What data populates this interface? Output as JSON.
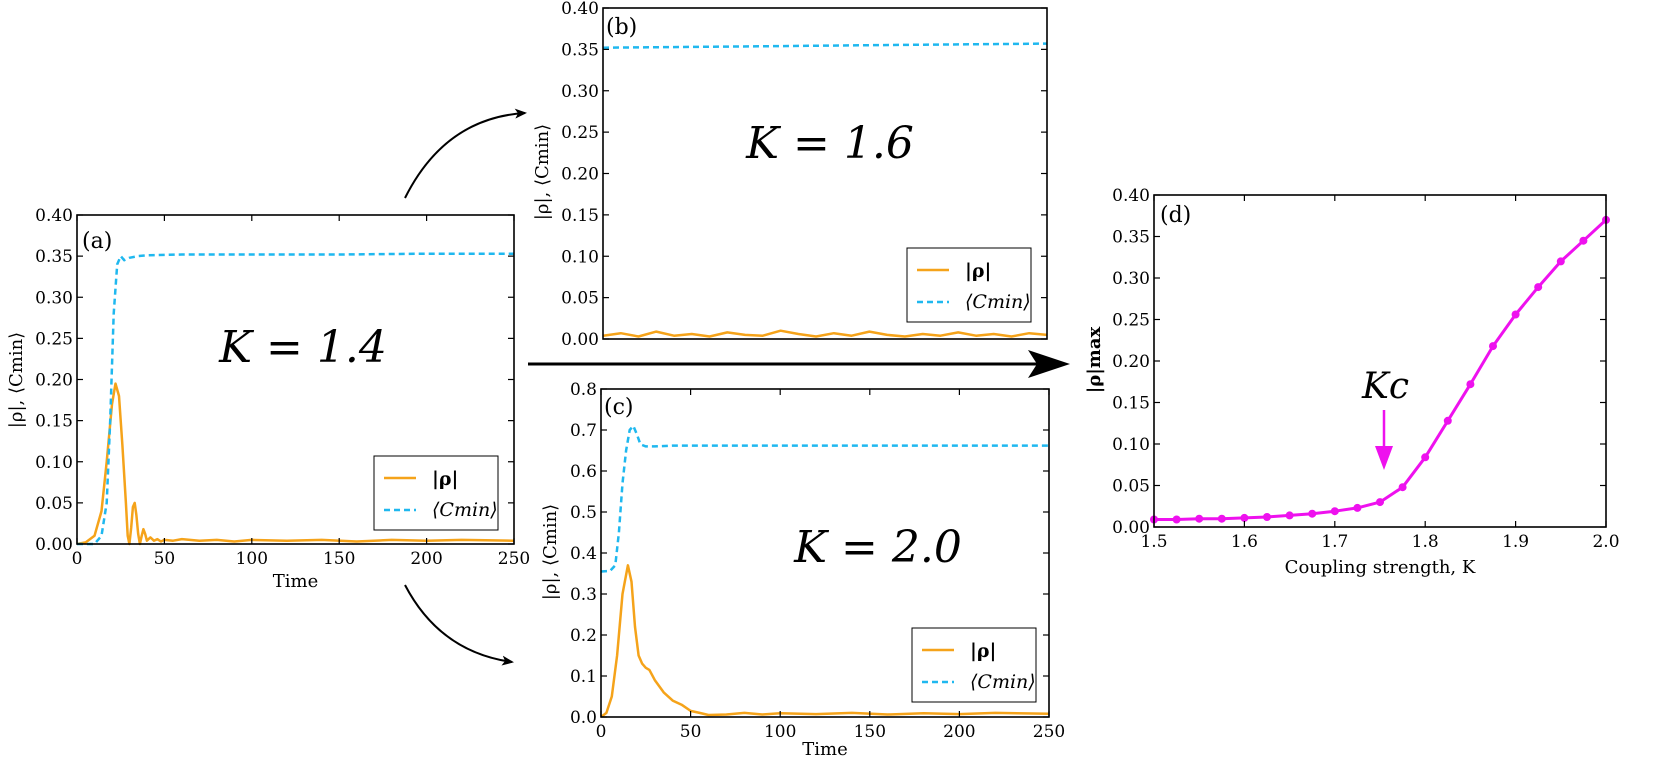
{
  "colors": {
    "rho": "#f5a31a",
    "cmin": "#1fb8ef",
    "sweep": "#ee11ee",
    "axis": "#000000"
  },
  "legend": {
    "rho": "|ρ|",
    "cmin": "⟨Cmin⟩"
  },
  "arrow": {
    "kc_label": "Kc"
  },
  "chart_data": [
    {
      "id": "a",
      "type": "line",
      "panel_label": "(a)",
      "annotation": "K = 1.4",
      "xlabel": "Time",
      "ylabel": "|ρ|, ⟨Cmin⟩",
      "xlim": [
        0,
        250
      ],
      "ylim": [
        0,
        0.4
      ],
      "xticks": [
        0,
        50,
        100,
        150,
        200,
        250
      ],
      "yticks": [
        0.0,
        0.05,
        0.1,
        0.15,
        0.2,
        0.25,
        0.3,
        0.35,
        0.4
      ],
      "ytick_decimals": 2,
      "series": [
        {
          "name": "|ρ|",
          "style": "solid",
          "x": [
            0,
            5,
            10,
            14,
            17,
            20,
            22,
            24,
            26,
            28,
            29,
            30,
            31,
            32,
            33,
            34,
            35,
            36,
            37,
            38,
            39,
            40,
            42,
            44,
            46,
            48,
            50,
            55,
            60,
            70,
            80,
            90,
            100,
            120,
            140,
            160,
            180,
            200,
            220,
            250
          ],
          "y": [
            0.0,
            0.002,
            0.01,
            0.04,
            0.1,
            0.17,
            0.195,
            0.18,
            0.12,
            0.05,
            0.01,
            0.0,
            0.02,
            0.045,
            0.05,
            0.035,
            0.012,
            0.0,
            0.01,
            0.018,
            0.012,
            0.004,
            0.008,
            0.004,
            0.006,
            0.003,
            0.005,
            0.004,
            0.006,
            0.004,
            0.005,
            0.003,
            0.005,
            0.004,
            0.005,
            0.003,
            0.005,
            0.004,
            0.005,
            0.004
          ]
        },
        {
          "name": "⟨Cmin⟩",
          "style": "dashed",
          "x": [
            0,
            10,
            14,
            17,
            19,
            21,
            23,
            25,
            27,
            30,
            35,
            40,
            60,
            100,
            150,
            200,
            250
          ],
          "y": [
            0.0,
            0.0,
            0.01,
            0.05,
            0.15,
            0.28,
            0.34,
            0.35,
            0.345,
            0.348,
            0.35,
            0.351,
            0.352,
            0.352,
            0.352,
            0.353,
            0.353
          ]
        }
      ]
    },
    {
      "id": "b",
      "type": "line",
      "panel_label": "(b)",
      "annotation": "K = 1.6",
      "xlabel": "",
      "ylabel": "|ρ|, ⟨Cmin⟩",
      "xlim": [
        0,
        250
      ],
      "ylim": [
        0,
        0.4
      ],
      "xticks": [],
      "yticks": [
        0.0,
        0.05,
        0.1,
        0.15,
        0.2,
        0.25,
        0.3,
        0.35,
        0.4
      ],
      "ytick_decimals": 2,
      "series": [
        {
          "name": "|ρ|",
          "style": "solid",
          "x": [
            0,
            10,
            20,
            30,
            40,
            50,
            60,
            70,
            80,
            90,
            100,
            110,
            120,
            130,
            140,
            150,
            160,
            170,
            180,
            190,
            200,
            210,
            220,
            230,
            240,
            250
          ],
          "y": [
            0.004,
            0.007,
            0.003,
            0.009,
            0.004,
            0.006,
            0.003,
            0.008,
            0.005,
            0.004,
            0.01,
            0.006,
            0.003,
            0.007,
            0.004,
            0.009,
            0.005,
            0.003,
            0.006,
            0.004,
            0.008,
            0.004,
            0.006,
            0.003,
            0.007,
            0.005
          ]
        },
        {
          "name": "⟨Cmin⟩",
          "style": "dashed",
          "x": [
            0,
            50,
            100,
            150,
            200,
            250
          ],
          "y": [
            0.352,
            0.353,
            0.354,
            0.355,
            0.356,
            0.357
          ]
        }
      ]
    },
    {
      "id": "c",
      "type": "line",
      "panel_label": "(c)",
      "annotation": "K = 2.0",
      "xlabel": "Time",
      "ylabel": "|ρ|, ⟨Cmin⟩",
      "xlim": [
        0,
        250
      ],
      "ylim": [
        0,
        0.8
      ],
      "xticks": [
        0,
        50,
        100,
        150,
        200,
        250
      ],
      "yticks": [
        0.0,
        0.1,
        0.2,
        0.3,
        0.4,
        0.5,
        0.6,
        0.7,
        0.8
      ],
      "ytick_decimals": 1,
      "series": [
        {
          "name": "|ρ|",
          "style": "solid",
          "x": [
            0,
            3,
            6,
            9,
            12,
            15,
            17,
            19,
            21,
            23,
            25,
            27,
            30,
            35,
            40,
            45,
            50,
            55,
            60,
            70,
            80,
            90,
            100,
            120,
            140,
            160,
            180,
            200,
            220,
            250
          ],
          "y": [
            0.0,
            0.01,
            0.05,
            0.15,
            0.3,
            0.37,
            0.33,
            0.22,
            0.15,
            0.13,
            0.12,
            0.115,
            0.09,
            0.06,
            0.04,
            0.03,
            0.015,
            0.01,
            0.005,
            0.006,
            0.01,
            0.006,
            0.009,
            0.007,
            0.01,
            0.006,
            0.009,
            0.007,
            0.01,
            0.008
          ]
        },
        {
          "name": "⟨Cmin⟩",
          "style": "dashed",
          "x": [
            0,
            5,
            8,
            10,
            12,
            14,
            16,
            18,
            20,
            22,
            25,
            30,
            40,
            60,
            100,
            150,
            200,
            250
          ],
          "y": [
            0.355,
            0.356,
            0.37,
            0.45,
            0.57,
            0.65,
            0.7,
            0.71,
            0.69,
            0.665,
            0.66,
            0.66,
            0.662,
            0.662,
            0.662,
            0.662,
            0.662,
            0.662
          ]
        }
      ]
    },
    {
      "id": "d",
      "type": "line",
      "panel_label": "(d)",
      "xlabel": "Coupling strength, K",
      "ylabel": "|ρ|max",
      "xlim": [
        1.5,
        2.0
      ],
      "ylim": [
        0,
        0.4
      ],
      "xticks": [
        1.5,
        1.6,
        1.7,
        1.8,
        1.9,
        2.0
      ],
      "yticks": [
        0.0,
        0.05,
        0.1,
        0.15,
        0.2,
        0.25,
        0.3,
        0.35,
        0.4
      ],
      "xtick_decimals": 1,
      "ytick_decimals": 2,
      "series": [
        {
          "name": "|ρ|max",
          "style": "solid-markers",
          "x": [
            1.5,
            1.525,
            1.55,
            1.575,
            1.6,
            1.625,
            1.65,
            1.675,
            1.7,
            1.725,
            1.75,
            1.775,
            1.8,
            1.825,
            1.85,
            1.875,
            1.9,
            1.925,
            1.95,
            1.975,
            2.0
          ],
          "y": [
            0.009,
            0.009,
            0.01,
            0.01,
            0.011,
            0.012,
            0.014,
            0.016,
            0.019,
            0.023,
            0.03,
            0.048,
            0.084,
            0.128,
            0.172,
            0.218,
            0.256,
            0.289,
            0.32,
            0.345,
            0.37
          ]
        }
      ]
    }
  ]
}
